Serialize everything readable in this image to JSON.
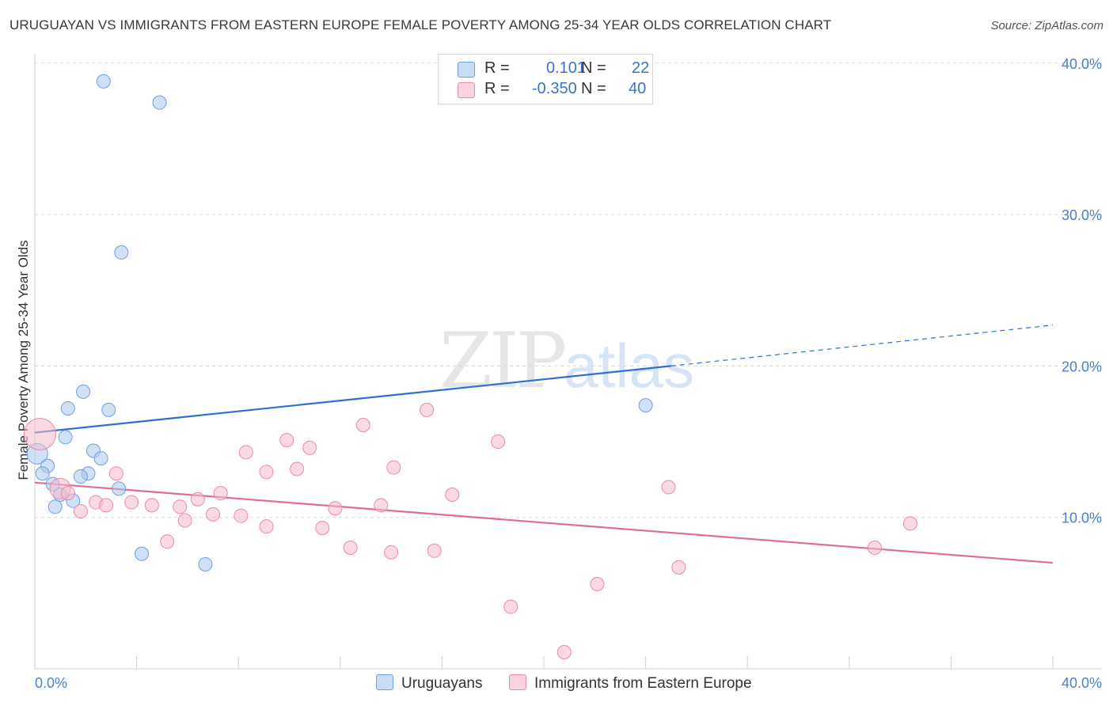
{
  "title": "URUGUAYAN VS IMMIGRANTS FROM EASTERN EUROPE FEMALE POVERTY AMONG 25-34 YEAR OLDS CORRELATION CHART",
  "source": "Source: ZipAtlas.com",
  "watermark": {
    "zip": "ZIP",
    "atlas": "atlas"
  },
  "legend": {
    "r_label": "R =",
    "n_label": "N =",
    "rows": [
      {
        "r": "0.101",
        "n": "22",
        "color": "#a9c7ef"
      },
      {
        "r": "-0.350",
        "n": "40",
        "color": "#f5b9cc"
      }
    ]
  },
  "bottom_legend": [
    {
      "label": "Uruguayans",
      "color": "#a9c7ef"
    },
    {
      "label": "Immigrants from Eastern Europe",
      "color": "#f5b9cc"
    }
  ],
  "chart_data": {
    "type": "scatter",
    "title": "URUGUAYAN VS IMMIGRANTS FROM EASTERN EUROPE FEMALE POVERTY AMONG 25-34 YEAR OLDS CORRELATION CHART",
    "xlabel": "",
    "ylabel": "Female Poverty Among 25-34 Year Olds",
    "xlim": [
      0,
      40
    ],
    "ylim": [
      0,
      40
    ],
    "x_tick_labels": [
      "0.0%",
      "40.0%"
    ],
    "y_ticks": [
      10,
      20,
      30,
      40
    ],
    "y_tick_labels": [
      "10.0%",
      "20.0%",
      "30.0%",
      "40.0%"
    ],
    "series": [
      {
        "name": "Uruguayans",
        "color": "#6f9fde",
        "fill": "#a9c7ef",
        "trend": {
          "x": [
            0,
            25
          ],
          "y": [
            15.6,
            20.0
          ],
          "dashed_to": [
            40,
            22.7
          ],
          "color": "#2f6fcf"
        },
        "points": [
          {
            "x": 2.7,
            "y": 38.8
          },
          {
            "x": 4.9,
            "y": 37.4
          },
          {
            "x": 3.4,
            "y": 27.5
          },
          {
            "x": 1.9,
            "y": 18.3
          },
          {
            "x": 1.3,
            "y": 17.2
          },
          {
            "x": 2.9,
            "y": 17.1
          },
          {
            "x": 24.0,
            "y": 17.4
          },
          {
            "x": 1.2,
            "y": 15.3
          },
          {
            "x": 0.1,
            "y": 14.2
          },
          {
            "x": 2.3,
            "y": 14.4
          },
          {
            "x": 2.6,
            "y": 13.9
          },
          {
            "x": 0.5,
            "y": 13.4
          },
          {
            "x": 0.3,
            "y": 12.9
          },
          {
            "x": 2.1,
            "y": 12.9
          },
          {
            "x": 1.8,
            "y": 12.7
          },
          {
            "x": 0.7,
            "y": 12.2
          },
          {
            "x": 3.3,
            "y": 11.9
          },
          {
            "x": 1.0,
            "y": 11.5
          },
          {
            "x": 1.5,
            "y": 11.1
          },
          {
            "x": 0.8,
            "y": 10.7
          },
          {
            "x": 4.2,
            "y": 7.6
          },
          {
            "x": 6.7,
            "y": 6.9
          }
        ]
      },
      {
        "name": "Immigrants from Eastern Europe",
        "color": "#e98aaa",
        "fill": "#f5b9cc",
        "trend": {
          "x": [
            0,
            40
          ],
          "y": [
            12.3,
            7.0
          ],
          "color": "#e06d96"
        },
        "points": [
          {
            "x": 0.2,
            "y": 15.5
          },
          {
            "x": 15.4,
            "y": 17.1
          },
          {
            "x": 12.9,
            "y": 16.1
          },
          {
            "x": 18.2,
            "y": 15.0
          },
          {
            "x": 9.9,
            "y": 15.1
          },
          {
            "x": 10.8,
            "y": 14.6
          },
          {
            "x": 8.3,
            "y": 14.3
          },
          {
            "x": 14.1,
            "y": 13.3
          },
          {
            "x": 10.3,
            "y": 13.2
          },
          {
            "x": 9.1,
            "y": 13.0
          },
          {
            "x": 3.2,
            "y": 12.9
          },
          {
            "x": 24.9,
            "y": 12.0
          },
          {
            "x": 1.0,
            "y": 11.9
          },
          {
            "x": 7.3,
            "y": 11.6
          },
          {
            "x": 16.4,
            "y": 11.5
          },
          {
            "x": 1.3,
            "y": 11.6
          },
          {
            "x": 6.4,
            "y": 11.2
          },
          {
            "x": 2.4,
            "y": 11.0
          },
          {
            "x": 3.8,
            "y": 11.0
          },
          {
            "x": 4.6,
            "y": 10.8
          },
          {
            "x": 2.8,
            "y": 10.8
          },
          {
            "x": 5.7,
            "y": 10.7
          },
          {
            "x": 13.6,
            "y": 10.8
          },
          {
            "x": 11.8,
            "y": 10.6
          },
          {
            "x": 1.8,
            "y": 10.4
          },
          {
            "x": 7.0,
            "y": 10.2
          },
          {
            "x": 8.1,
            "y": 10.1
          },
          {
            "x": 5.9,
            "y": 9.8
          },
          {
            "x": 34.4,
            "y": 9.6
          },
          {
            "x": 9.1,
            "y": 9.4
          },
          {
            "x": 11.3,
            "y": 9.3
          },
          {
            "x": 5.2,
            "y": 8.4
          },
          {
            "x": 12.4,
            "y": 8.0
          },
          {
            "x": 33.0,
            "y": 8.0
          },
          {
            "x": 15.7,
            "y": 7.8
          },
          {
            "x": 14.0,
            "y": 7.7
          },
          {
            "x": 25.3,
            "y": 6.7
          },
          {
            "x": 22.1,
            "y": 5.6
          },
          {
            "x": 18.7,
            "y": 4.1
          },
          {
            "x": 20.8,
            "y": 1.1
          }
        ]
      }
    ]
  }
}
